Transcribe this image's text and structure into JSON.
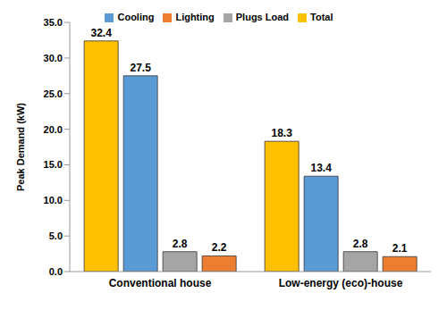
{
  "chart_data": {
    "type": "bar",
    "categories": [
      "Conventional house",
      "Low-energy (eco)-house"
    ],
    "series": [
      {
        "name": "Total",
        "color": "#ffc000",
        "values": [
          32.4,
          18.3
        ]
      },
      {
        "name": "Cooling",
        "color": "#5b9bd5",
        "values": [
          27.5,
          13.4
        ]
      },
      {
        "name": "Plugs Load",
        "color": "#a5a5a5",
        "values": [
          2.8,
          2.8
        ]
      },
      {
        "name": "Lighting",
        "color": "#ed7d31",
        "values": [
          2.2,
          2.1
        ]
      }
    ],
    "y_label": "Peak Demand (kW)",
    "ylim": [
      0,
      35
    ],
    "yticks": [
      {
        "value": 0,
        "label": "0.0"
      },
      {
        "value": 5,
        "label": "5.0"
      },
      {
        "value": 10,
        "label": "10.0"
      },
      {
        "value": 15,
        "label": "15.0"
      },
      {
        "value": 20,
        "label": "20.0"
      },
      {
        "value": 25,
        "label": "25.0"
      },
      {
        "value": 30,
        "label": "30.0"
      },
      {
        "value": 35,
        "label": "35.0"
      }
    ],
    "grid": false,
    "legend": "top",
    "data_labels": true
  }
}
